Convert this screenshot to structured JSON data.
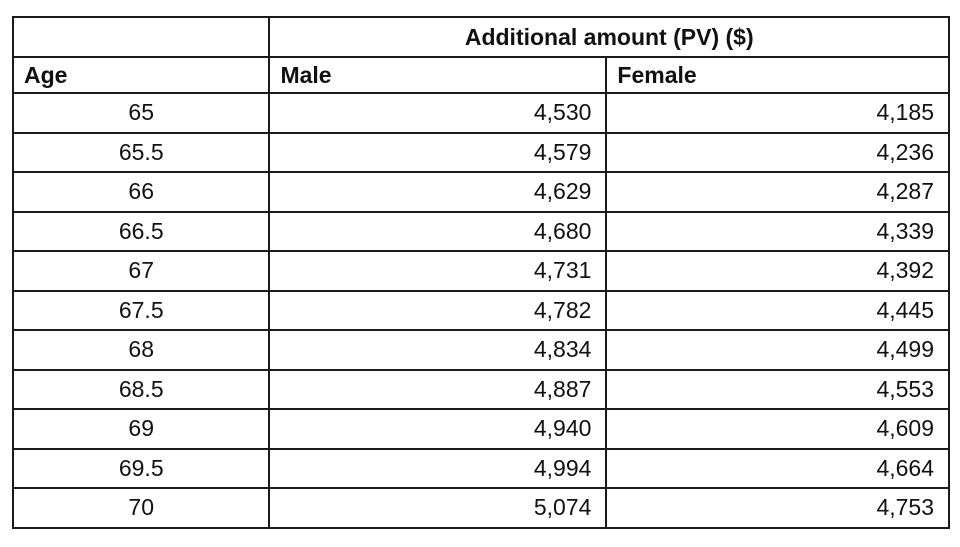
{
  "table": {
    "group_header": "Additional amount (PV) ($)",
    "columns": {
      "age": "Age",
      "male": "Male",
      "female": "Female"
    },
    "rows": [
      {
        "age": "65",
        "male": "4,530",
        "female": "4,185"
      },
      {
        "age": "65.5",
        "male": "4,579",
        "female": "4,236"
      },
      {
        "age": "66",
        "male": "4,629",
        "female": "4,287"
      },
      {
        "age": "66.5",
        "male": "4,680",
        "female": "4,339"
      },
      {
        "age": "67",
        "male": "4,731",
        "female": "4,392"
      },
      {
        "age": "67.5",
        "male": "4,782",
        "female": "4,445"
      },
      {
        "age": "68",
        "male": "4,834",
        "female": "4,499"
      },
      {
        "age": "68.5",
        "male": "4,887",
        "female": "4,553"
      },
      {
        "age": "69",
        "male": "4,940",
        "female": "4,609"
      },
      {
        "age": "69.5",
        "male": "4,994",
        "female": "4,664"
      },
      {
        "age": "70",
        "male": "5,074",
        "female": "4,753"
      }
    ]
  },
  "chart_data": {
    "type": "table",
    "title": "Additional amount (PV) ($)",
    "categories": [
      65,
      65.5,
      66,
      66.5,
      67,
      67.5,
      68,
      68.5,
      69,
      69.5,
      70
    ],
    "series": [
      {
        "name": "Male",
        "values": [
          4530,
          4579,
          4629,
          4680,
          4731,
          4782,
          4834,
          4887,
          4940,
          4994,
          5074
        ]
      },
      {
        "name": "Female",
        "values": [
          4185,
          4236,
          4287,
          4339,
          4392,
          4445,
          4499,
          4553,
          4609,
          4664,
          4753
        ]
      }
    ],
    "xlabel": "Age"
  }
}
